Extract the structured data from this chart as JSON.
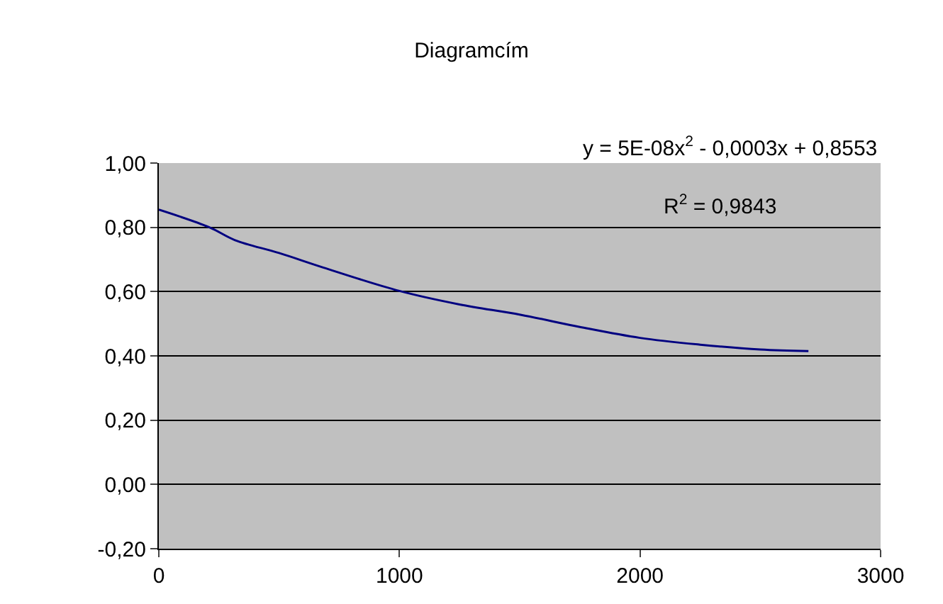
{
  "chart_data": {
    "type": "line",
    "title": "Diagramcím",
    "x": [
      0,
      210,
      317,
      500,
      683,
      1000,
      1250,
      1503,
      1750,
      2000,
      2250,
      2500,
      2700
    ],
    "series": [
      {
        "color": "#000080",
        "values": [
          0.855,
          0.8,
          0.76,
          0.72,
          0.675,
          0.602,
          0.56,
          0.528,
          0.49,
          0.456,
          0.435,
          0.42,
          0.415
        ]
      }
    ],
    "xlim": [
      0,
      3000
    ],
    "xticks": [
      0,
      1000,
      2000,
      3000
    ],
    "ylim": [
      -0.2,
      1.0
    ],
    "yticks": [
      {
        "value": -0.2,
        "label": "-0,20"
      },
      {
        "value": 0,
        "label": "0,00"
      },
      {
        "value": 0.2,
        "label": "0,20"
      },
      {
        "value": 0.4,
        "label": "0,40"
      },
      {
        "value": 0.6,
        "label": "0,60"
      },
      {
        "value": 0.8,
        "label": "0,80"
      },
      {
        "value": 1.0,
        "label": "1,00"
      }
    ],
    "grid": "y",
    "legend": false,
    "marker": "none",
    "line_style": "solid",
    "annotations": [
      "y = 5E-08x$^{2}$ - 0,0003x + 0,8553",
      "R$^{2}$ = 0,9843"
    ]
  }
}
